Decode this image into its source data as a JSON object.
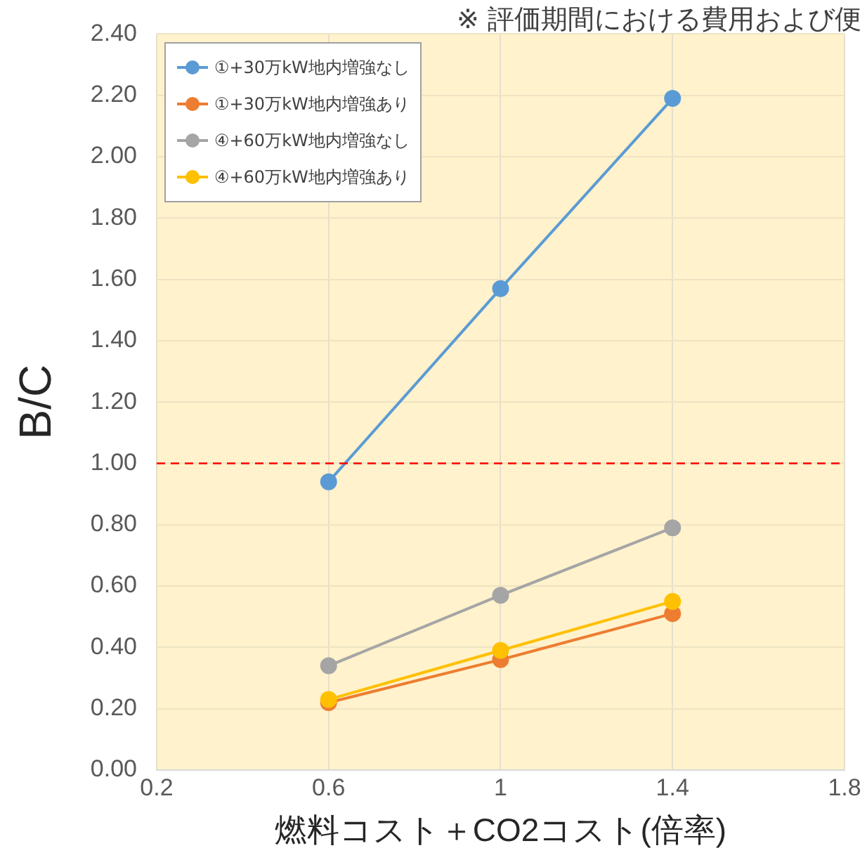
{
  "chart_data": {
    "type": "line",
    "title": "※ 評価期間における費用および便",
    "xlabel": "燃料コスト＋CO2コスト(倍率)",
    "ylabel": "B/C",
    "x": [
      0.6,
      1,
      1.4
    ],
    "series": [
      {
        "name": "①+30万kW地内増強なし",
        "color": "#5b9bd5",
        "values": [
          0.94,
          1.57,
          2.19
        ]
      },
      {
        "name": "①+30万kW地内増強あり",
        "color": "#ed7d31",
        "values": [
          0.22,
          0.36,
          0.51
        ]
      },
      {
        "name": "④+60万kW地内増強なし",
        "color": "#a5a5a5",
        "values": [
          0.34,
          0.57,
          0.79
        ]
      },
      {
        "name": "④+60万kW地内増強あり",
        "color": "#ffc000",
        "values": [
          0.23,
          0.39,
          0.55
        ]
      }
    ],
    "xlim": [
      0.2,
      1.8
    ],
    "xticks": [
      0.2,
      0.6,
      1,
      1.4,
      1.8
    ],
    "ylim": [
      0,
      2.4
    ],
    "yticks": [
      {
        "value": 0,
        "label": "0.00"
      },
      {
        "value": 0.2,
        "label": "0.20"
      },
      {
        "value": 0.4,
        "label": "0.40"
      },
      {
        "value": 0.6,
        "label": "0.60"
      },
      {
        "value": 0.8,
        "label": "0.80"
      },
      {
        "value": 1,
        "label": "1.00"
      },
      {
        "value": 1.2,
        "label": "1.20"
      },
      {
        "value": 1.4,
        "label": "1.40"
      },
      {
        "value": 1.6,
        "label": "1.60"
      },
      {
        "value": 1.8,
        "label": "1.80"
      },
      {
        "value": 2,
        "label": "2.00"
      },
      {
        "value": 2.2,
        "label": "2.20"
      },
      {
        "value": 2.4,
        "label": "2.40"
      }
    ],
    "ref_lines": [
      {
        "axis": "y",
        "value": 1,
        "color": "#ff0000",
        "line_style": "dashed"
      }
    ],
    "grid": true,
    "legend": "top left",
    "marker": "circle",
    "line_style": "solid"
  }
}
